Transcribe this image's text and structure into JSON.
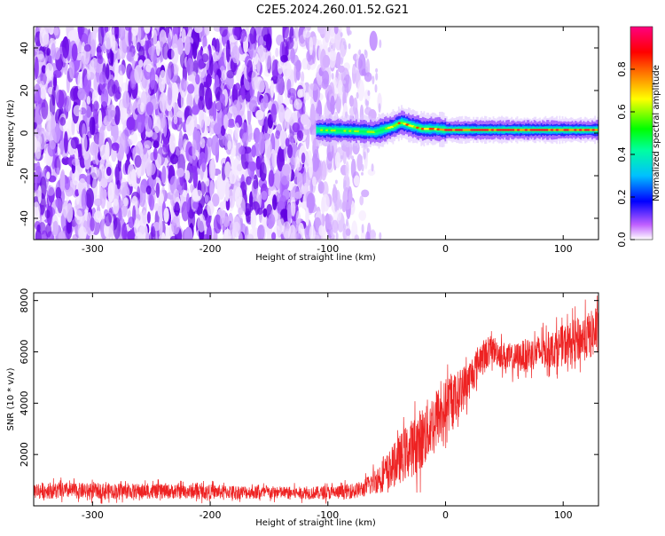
{
  "title": "C2E5.2024.260.01.52.G21",
  "chart_data": [
    {
      "type": "heatmap",
      "xlabel": "Height of straight line (km)",
      "ylabel": "Frequency (Hz)",
      "xlim": [
        -350,
        130
      ],
      "ylim": [
        -50,
        50
      ],
      "x_ticks": [
        -300,
        -200,
        -100,
        0,
        100
      ],
      "y_ticks": [
        -40,
        -20,
        0,
        20,
        40
      ],
      "noise_region_x": [
        -350,
        -75
      ],
      "carrier_x": [
        -110,
        130
      ],
      "carrier_center_hz": [
        {
          "x": -110,
          "y": 1.5
        },
        {
          "x": -80,
          "y": 1.0
        },
        {
          "x": -60,
          "y": 0.5
        },
        {
          "x": -45,
          "y": 3.0
        },
        {
          "x": -38,
          "y": 5.0
        },
        {
          "x": -30,
          "y": 3.5
        },
        {
          "x": -20,
          "y": 2.0
        },
        {
          "x": -10,
          "y": 2.0
        },
        {
          "x": 0,
          "y": 1.5
        },
        {
          "x": 30,
          "y": 1.5
        },
        {
          "x": 60,
          "y": 1.5
        },
        {
          "x": 100,
          "y": 1.5
        },
        {
          "x": 130,
          "y": 1.5
        }
      ],
      "colorbar": {
        "label": "Normalized spectral amplitude",
        "ticks": [
          0.0,
          0.2,
          0.4,
          0.6,
          0.8
        ],
        "tick_labels": [
          "0.0",
          "0.2",
          "0.4",
          "0.6",
          "0.8"
        ],
        "range": [
          0,
          1
        ],
        "colormap": [
          "#ffffff",
          "#a000ff",
          "#0000ff",
          "#00ffff",
          "#00ff00",
          "#ffff00",
          "#ff0000",
          "#ff0080"
        ]
      }
    },
    {
      "type": "line",
      "xlabel": "Height of straight line (km)",
      "ylabel": "SNR (10 * v/v)",
      "xlim": [
        -350,
        130
      ],
      "ylim": [
        0,
        8300
      ],
      "x_ticks": [
        -300,
        -200,
        -100,
        0,
        100
      ],
      "y_ticks": [
        2000,
        4000,
        6000,
        8000
      ],
      "color": "#ee2222",
      "envelope": [
        {
          "x": -350,
          "mean": 600,
          "spread": 400
        },
        {
          "x": -200,
          "mean": 550,
          "spread": 350
        },
        {
          "x": -120,
          "mean": 500,
          "spread": 300
        },
        {
          "x": -90,
          "mean": 520,
          "spread": 350
        },
        {
          "x": -70,
          "mean": 650,
          "spread": 400
        },
        {
          "x": -50,
          "mean": 1300,
          "spread": 900
        },
        {
          "x": -35,
          "mean": 2000,
          "spread": 1300
        },
        {
          "x": -20,
          "mean": 2600,
          "spread": 1600
        },
        {
          "x": -10,
          "mean": 3300,
          "spread": 1500
        },
        {
          "x": 0,
          "mean": 3800,
          "spread": 1400
        },
        {
          "x": 10,
          "mean": 4300,
          "spread": 1200
        },
        {
          "x": 20,
          "mean": 4900,
          "spread": 1000
        },
        {
          "x": 30,
          "mean": 5800,
          "spread": 800
        },
        {
          "x": 40,
          "mean": 6100,
          "spread": 700
        },
        {
          "x": 55,
          "mean": 5700,
          "spread": 700
        },
        {
          "x": 70,
          "mean": 5900,
          "spread": 800
        },
        {
          "x": 90,
          "mean": 6100,
          "spread": 900
        },
        {
          "x": 110,
          "mean": 6400,
          "spread": 1100
        },
        {
          "x": 130,
          "mean": 6800,
          "spread": 1200
        }
      ]
    }
  ]
}
